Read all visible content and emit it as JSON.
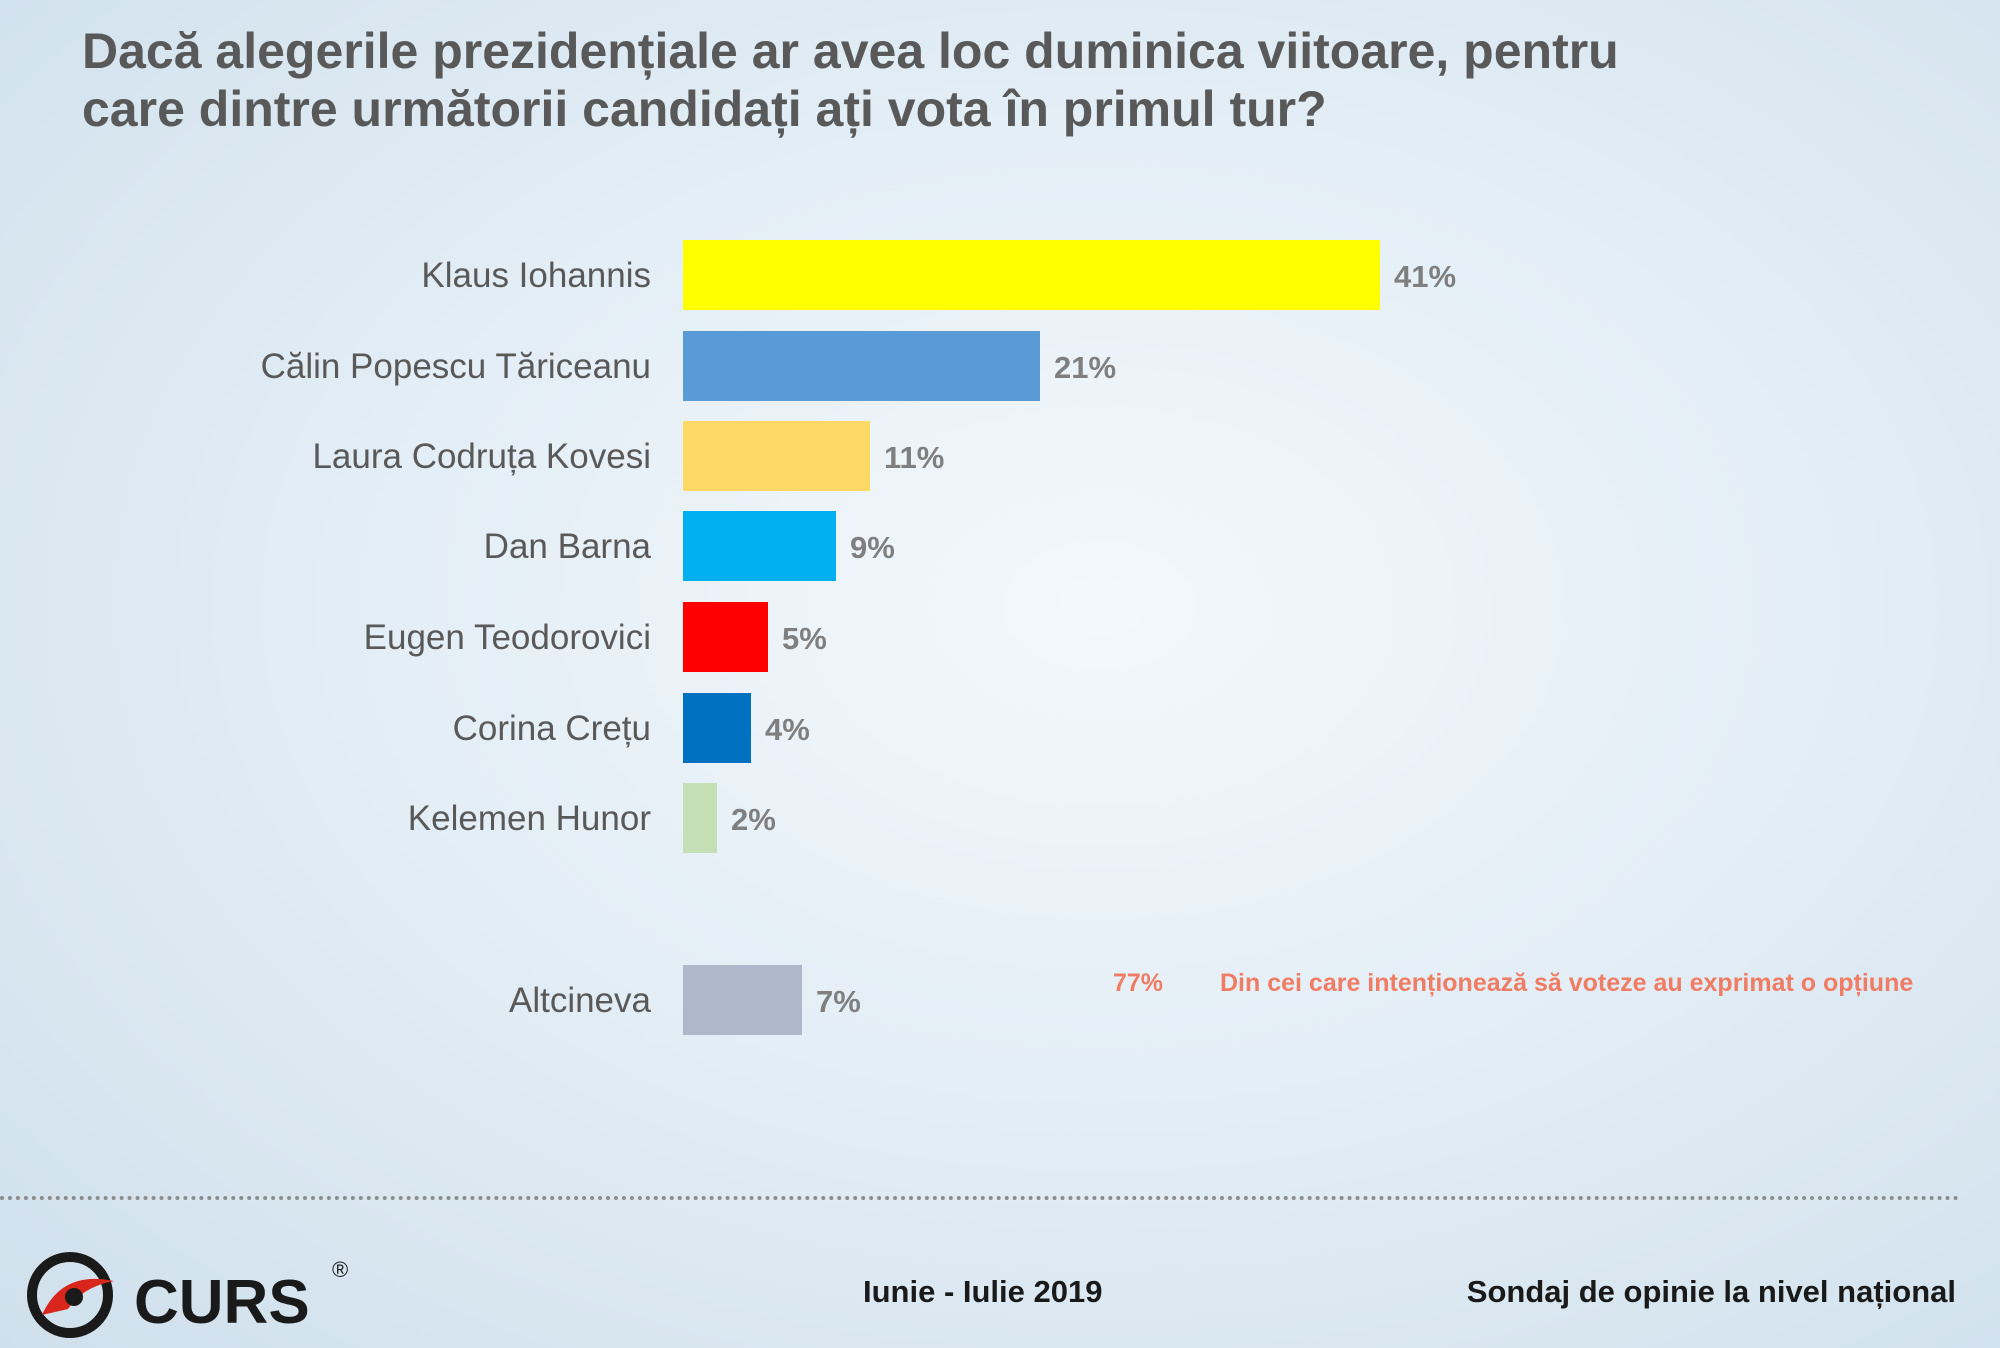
{
  "chart_data": {
    "type": "bar",
    "orientation": "horizontal",
    "title": "Dacă alegerile prezidențiale ar avea loc duminica viitoare, pentru care dintre următorii candidați ați vota în primul tur?",
    "title_lines": [
      "Dacă alegerile prezidențiale ar avea loc duminica viitoare, pentru",
      "care dintre următorii candidați ați vota în primul tur?"
    ],
    "categories": [
      "Klaus Iohannis",
      "Călin Popescu Tăriceanu",
      "Laura Codruța Kovesi",
      "Dan Barna",
      "Eugen Teodorovici",
      "Corina Crețu",
      "Kelemen Hunor",
      "Altcineva"
    ],
    "values": [
      41,
      21,
      11,
      9,
      5,
      4,
      2,
      7
    ],
    "value_labels": [
      "41%",
      "21%",
      "11%",
      "9%",
      "5%",
      "4%",
      "2%",
      "7%"
    ],
    "colors": [
      "#ffff00",
      "#5b9bd5",
      "#ffd966",
      "#00b0f0",
      "#ff0000",
      "#0070c0",
      "#c5e0b4",
      "#adb9ca"
    ],
    "xlim": [
      0,
      41
    ],
    "grid": false,
    "legend": "none"
  },
  "note": {
    "value": "77%",
    "text": "Din cei care intenționează să voteze au exprimat o opțiune"
  },
  "footer": {
    "date": "Iunie - Iulie 2019",
    "source": "Sondaj de opinie la nivel național",
    "logo_text": "CURS",
    "logo_mark": "®"
  }
}
